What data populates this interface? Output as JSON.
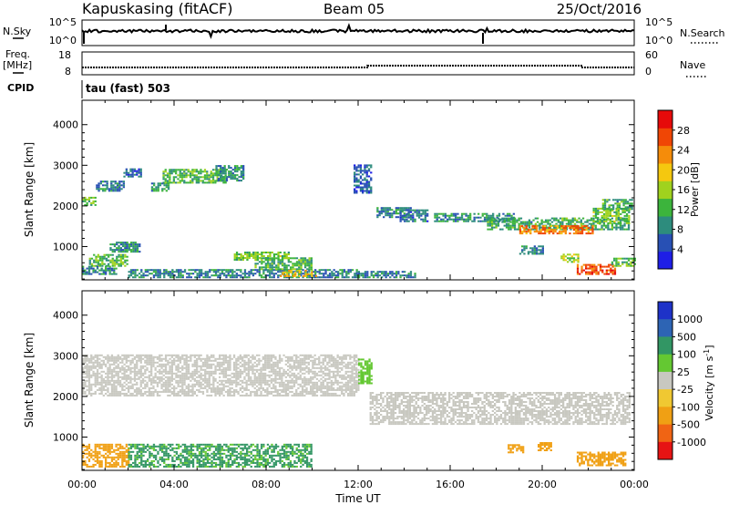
{
  "header": {
    "station": "Kapuskasing (fitACF)",
    "beam": "Beam 05",
    "date": "25/Oct/2016"
  },
  "top_panels": {
    "nsky_label": "N.Sky",
    "nsky_ticks": [
      "10^5",
      "10^0"
    ],
    "nsearch_label": "N.Search",
    "nsearch_ticks": [
      "10^5",
      "10^0"
    ],
    "freq_label": "Freq.",
    "freq_unit": "[MHz]",
    "freq_ticks": [
      "18",
      "8"
    ],
    "nave_label": "Nave",
    "nave_ticks": [
      "60",
      "0"
    ],
    "cpid_label": "CPID",
    "cpid_text": "tau (fast) 503"
  },
  "chart_data": [
    {
      "type": "heatmap",
      "name": "power",
      "ylabel": "Slant Range [km]",
      "ylim": [
        180,
        4600
      ],
      "yticks": [
        "1000",
        "2000",
        "3000",
        "4000"
      ],
      "xlabel": "Time UT",
      "xlim_hours": [
        0,
        24
      ],
      "xticks": [
        "00:00",
        "04:00",
        "08:00",
        "12:00",
        "16:00",
        "20:00",
        "00:00"
      ],
      "colorbar": {
        "label": "Power [dB]",
        "ticks": [
          "4",
          "8",
          "12",
          "16",
          "20",
          "24",
          "28"
        ],
        "range": [
          0,
          32
        ],
        "colors": [
          "#1e1ee6",
          "#2850b4",
          "#2d8c7d",
          "#3cb43c",
          "#a0d21e",
          "#f5c80f",
          "#f58c0a",
          "#f04605",
          "#e60a0a"
        ]
      },
      "echo_regions": [
        {
          "t0": 0.0,
          "t1": 0.6,
          "r0": 2000,
          "r1": 2200,
          "power": 14
        },
        {
          "t0": 0.6,
          "t1": 1.8,
          "r0": 2350,
          "r1": 2600,
          "power": 8
        },
        {
          "t0": 1.8,
          "t1": 2.6,
          "r0": 2700,
          "r1": 2900,
          "power": 6
        },
        {
          "t0": 3.0,
          "t1": 3.8,
          "r0": 2350,
          "r1": 2550,
          "power": 10
        },
        {
          "t0": 3.5,
          "t1": 6.2,
          "r0": 2550,
          "r1": 2900,
          "power": 12
        },
        {
          "t0": 5.8,
          "t1": 7.0,
          "r0": 2600,
          "r1": 3000,
          "power": 9
        },
        {
          "t0": 0.3,
          "t1": 2.0,
          "r0": 500,
          "r1": 800,
          "power": 13
        },
        {
          "t0": 1.2,
          "t1": 2.5,
          "r0": 850,
          "r1": 1100,
          "power": 10
        },
        {
          "t0": 0.0,
          "t1": 1.5,
          "r0": 300,
          "r1": 500,
          "power": 9
        },
        {
          "t0": 2.0,
          "t1": 12.0,
          "r0": 220,
          "r1": 420,
          "power": 8
        },
        {
          "t0": 6.6,
          "t1": 9.0,
          "r0": 650,
          "r1": 850,
          "power": 14
        },
        {
          "t0": 7.5,
          "t1": 10.0,
          "r0": 420,
          "r1": 700,
          "power": 12
        },
        {
          "t0": 8.6,
          "t1": 10.2,
          "r0": 250,
          "r1": 430,
          "power": 20
        },
        {
          "t0": 12.0,
          "t1": 14.5,
          "r0": 220,
          "r1": 380,
          "power": 8
        },
        {
          "t0": 11.8,
          "t1": 12.6,
          "r0": 2300,
          "r1": 3000,
          "power": 6
        },
        {
          "t0": 12.8,
          "t1": 14.3,
          "r0": 1700,
          "r1": 1950,
          "power": 9
        },
        {
          "t0": 13.8,
          "t1": 15.0,
          "r0": 1600,
          "r1": 1900,
          "power": 7
        },
        {
          "t0": 15.3,
          "t1": 18.8,
          "r0": 1600,
          "r1": 1800,
          "power": 9
        },
        {
          "t0": 17.6,
          "t1": 23.8,
          "r0": 1400,
          "r1": 1700,
          "power": 11
        },
        {
          "t0": 19.0,
          "t1": 22.2,
          "r0": 1300,
          "r1": 1520,
          "power": 24
        },
        {
          "t0": 22.2,
          "t1": 23.8,
          "r0": 1550,
          "r1": 1950,
          "power": 14
        },
        {
          "t0": 22.6,
          "t1": 23.9,
          "r0": 1900,
          "r1": 2150,
          "power": 11
        },
        {
          "t0": 20.8,
          "t1": 21.6,
          "r0": 600,
          "r1": 820,
          "power": 16
        },
        {
          "t0": 21.5,
          "t1": 23.2,
          "r0": 300,
          "r1": 550,
          "power": 26
        },
        {
          "t0": 23.0,
          "t1": 24.0,
          "r0": 500,
          "r1": 700,
          "power": 12
        },
        {
          "t0": 19.0,
          "t1": 20.0,
          "r0": 800,
          "r1": 1000,
          "power": 8
        }
      ]
    },
    {
      "type": "heatmap",
      "name": "velocity",
      "ylabel": "Slant Range [km]",
      "ylim": [
        180,
        4600
      ],
      "yticks": [
        "1000",
        "2000",
        "3000",
        "4000"
      ],
      "xlabel": "Time UT",
      "xlim_hours": [
        0,
        24
      ],
      "xticks": [
        "00:00",
        "04:00",
        "08:00",
        "12:00",
        "16:00",
        "20:00",
        "00:00"
      ],
      "colorbar": {
        "label": "Velocity [m s",
        "label_sup": "-1",
        "label_end": "]",
        "ticks": [
          "1000",
          "500",
          "100",
          "25",
          "-25",
          "-100",
          "-500",
          "-1000"
        ],
        "colors": [
          "#1e32c8",
          "#2d64b4",
          "#329664",
          "#64c832",
          "#c8c8c0",
          "#f0c832",
          "#f0a014",
          "#f06414",
          "#e61414"
        ]
      },
      "echo_regions": [
        {
          "t0": 0.0,
          "t1": 12.0,
          "r0": 2000,
          "r1": 3000,
          "velocity": 0
        },
        {
          "t0": 0.0,
          "t1": 2.0,
          "r0": 250,
          "r1": 800,
          "velocity": -120
        },
        {
          "t0": 2.0,
          "t1": 10.0,
          "r0": 250,
          "r1": 800,
          "velocity": 110
        },
        {
          "t0": 12.5,
          "t1": 23.8,
          "r0": 1300,
          "r1": 2100,
          "velocity": 0
        },
        {
          "t0": 18.5,
          "t1": 19.2,
          "r0": 600,
          "r1": 800,
          "velocity": -200
        },
        {
          "t0": 19.8,
          "t1": 20.4,
          "r0": 650,
          "r1": 850,
          "velocity": -300
        },
        {
          "t0": 21.5,
          "t1": 23.6,
          "r0": 280,
          "r1": 600,
          "velocity": -250
        },
        {
          "t0": 12.0,
          "t1": 12.6,
          "r0": 2300,
          "r1": 2900,
          "velocity": 60
        }
      ]
    }
  ]
}
